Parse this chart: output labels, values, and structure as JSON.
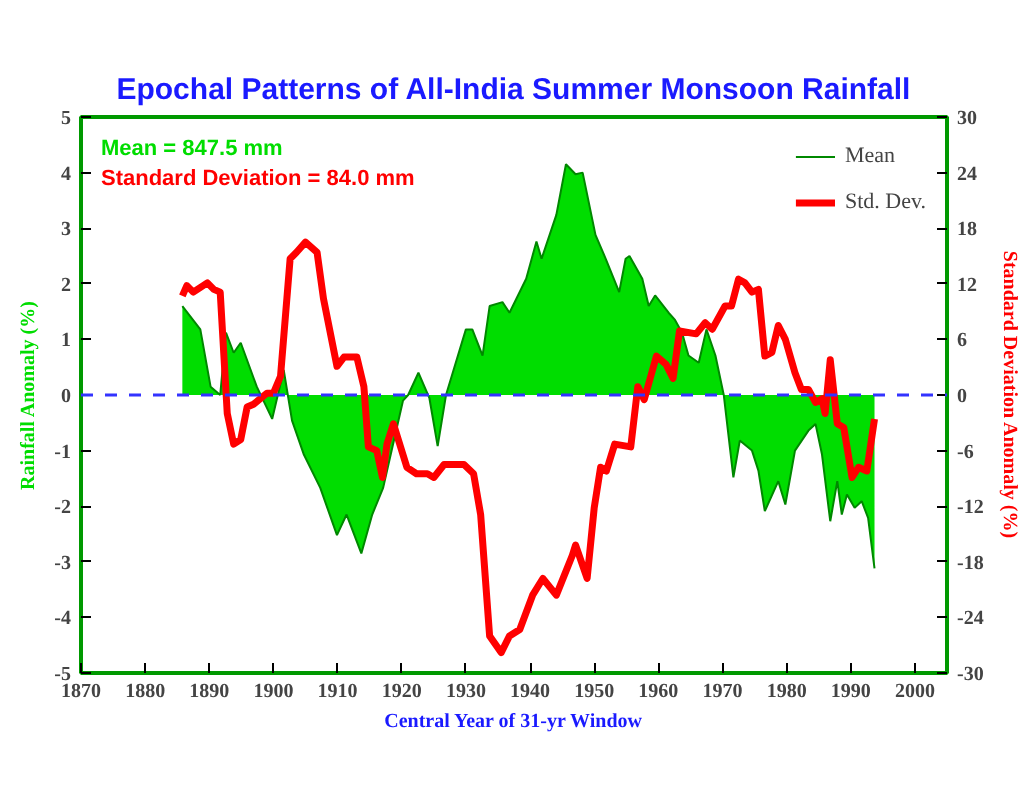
{
  "chart_data": {
    "type": "area",
    "title": "Epochal Patterns of All-India Summer Monsoon Rainfall",
    "xlabel": "Central Year of 31-yr Window",
    "ylabel": "Rainfall Anomaly (%)",
    "y2label": "Standard Deviation Anomaly (%)",
    "annotations": [
      "Mean = 847.5 mm",
      "Standard Deviation = 84.0 mm"
    ],
    "xlim": [
      1870,
      2005
    ],
    "xticks": [
      1870,
      1880,
      1890,
      1900,
      1910,
      1920,
      1930,
      1940,
      1950,
      1960,
      1970,
      1980,
      1990,
      2000
    ],
    "ylim": [
      -5,
      5
    ],
    "yticks": [
      -5,
      -4,
      -3,
      -2,
      -1,
      0,
      1,
      2,
      3,
      4,
      5
    ],
    "y2lim": [
      -30,
      30
    ],
    "y2ticks": [
      -30,
      -24,
      -18,
      -12,
      -6,
      0,
      6,
      12,
      18,
      24,
      30
    ],
    "grid": false,
    "legend": "top right",
    "marker": "none",
    "ref_lines": [
      {
        "axis": "y",
        "value": 0,
        "color": "#3333ff",
        "line_style": "dashed"
      }
    ],
    "series": [
      {
        "name": "Mean",
        "color": "#00dd00",
        "x": [
          1885.8,
          1888.6,
          1890.2,
          1891.7,
          1892.6,
          1893.8,
          1894.9,
          1897.4,
          1899.8,
          1901.6,
          1902.9,
          1904.7,
          1907.3,
          1909.9,
          1911.4,
          1913.7,
          1915.4,
          1917.1,
          1920.2,
          1921.0,
          1922.6,
          1924.3,
          1925.6,
          1926.9,
          1930.0,
          1931.0,
          1932.6,
          1933.7,
          1935.7,
          1936.8,
          1939.4,
          1941.0,
          1941.8,
          1944.1,
          1945.6,
          1947.1,
          1948.2,
          1950.2,
          1951.8,
          1953.9,
          1954.9,
          1955.5,
          1957.5,
          1958.5,
          1959.5,
          1961.6,
          1962.6,
          1963.7,
          1964.7,
          1966.3,
          1967.5,
          1968.9,
          1970.2,
          1971.7,
          1972.7,
          1974.6,
          1975.6,
          1976.6,
          1978.7,
          1979.8,
          1981.3,
          1983.4,
          1984.5,
          1985.5,
          1986.8,
          1987.9,
          1988.6,
          1989.4,
          1990.6,
          1991.7,
          1992.7,
          1993.7
        ],
        "values": [
          1.6,
          1.18,
          0.15,
          0.0,
          1.12,
          0.76,
          0.94,
          0.15,
          -0.43,
          0.45,
          -0.46,
          -1.06,
          -1.67,
          -2.52,
          -2.15,
          -2.85,
          -2.15,
          -1.67,
          -0.1,
          0.0,
          0.4,
          -0.05,
          -0.92,
          0.0,
          1.18,
          1.18,
          0.71,
          1.6,
          1.67,
          1.48,
          2.09,
          2.76,
          2.45,
          3.24,
          4.15,
          3.97,
          4.0,
          2.88,
          2.45,
          1.85,
          2.45,
          2.5,
          2.09,
          1.6,
          1.79,
          1.48,
          1.35,
          1.12,
          0.71,
          0.58,
          1.18,
          0.71,
          0.0,
          -1.48,
          -0.82,
          -1.0,
          -1.36,
          -2.09,
          -1.55,
          -1.97,
          -1.0,
          -0.64,
          -0.52,
          -1.06,
          -2.27,
          -1.55,
          -2.15,
          -1.79,
          -2.03,
          -1.91,
          -2.21,
          -3.12
        ]
      },
      {
        "name": "Std. Dev.",
        "type": "line",
        "axis": "y2",
        "color": "#ff0000",
        "x": [
          1885.8,
          1886.5,
          1887.5,
          1889.7,
          1890.7,
          1891.7,
          1892.8,
          1893.8,
          1894.9,
          1895.9,
          1896.9,
          1899.0,
          1900.0,
          1901.1,
          1902.6,
          1903.6,
          1905.0,
          1906.8,
          1907.8,
          1909.9,
          1911.0,
          1913.0,
          1914.1,
          1914.8,
          1916.1,
          1917.0,
          1917.7,
          1918.7,
          1920.8,
          1922.3,
          1924.0,
          1925.0,
          1926.6,
          1929.7,
          1931.2,
          1932.3,
          1933.7,
          1935.5,
          1936.8,
          1938.4,
          1940.4,
          1942.0,
          1944.1,
          1946.6,
          1947.1,
          1948.9,
          1950.0,
          1951.0,
          1951.9,
          1953.2,
          1955.7,
          1956.8,
          1957.8,
          1959.7,
          1961.2,
          1962.3,
          1963.3,
          1965.9,
          1967.3,
          1968.4,
          1970.4,
          1971.4,
          1972.5,
          1973.5,
          1974.6,
          1975.6,
          1976.6,
          1977.7,
          1978.7,
          1979.8,
          1981.3,
          1982.3,
          1983.4,
          1984.5,
          1985.5,
          1986.0,
          1986.8,
          1987.9,
          1988.9,
          1990.2,
          1991.2,
          1992.5,
          1993.7
        ],
        "values": [
          10.7,
          11.8,
          11.1,
          12.1,
          11.4,
          11.1,
          -2.0,
          -5.3,
          -4.8,
          -1.3,
          -1.0,
          0.2,
          0.2,
          2.0,
          14.7,
          15.4,
          16.5,
          15.4,
          10.4,
          3.1,
          4.1,
          4.1,
          0.9,
          -5.6,
          -6.0,
          -8.9,
          -5.3,
          -3.1,
          -7.8,
          -8.5,
          -8.5,
          -8.9,
          -7.5,
          -7.5,
          -8.5,
          -12.9,
          -26.0,
          -27.8,
          -26.0,
          -25.3,
          -21.6,
          -19.8,
          -21.6,
          -17.3,
          -16.2,
          -19.8,
          -12.2,
          -7.8,
          -8.2,
          -5.3,
          -5.6,
          0.9,
          -0.5,
          4.2,
          3.3,
          1.8,
          6.9,
          6.6,
          7.8,
          7.1,
          9.6,
          9.6,
          12.5,
          12.1,
          11.1,
          11.4,
          4.2,
          4.6,
          7.5,
          6.0,
          2.4,
          0.6,
          0.6,
          -0.8,
          -0.4,
          -2.0,
          3.8,
          -3.1,
          -3.5,
          -8.9,
          -7.8,
          -8.2,
          -2.6
        ]
      }
    ]
  }
}
